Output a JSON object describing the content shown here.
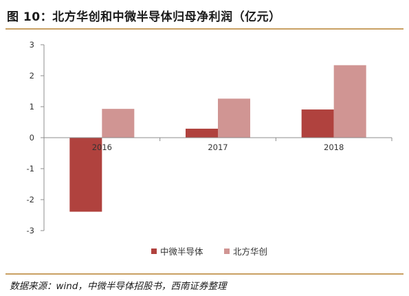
{
  "figure": {
    "title": "图 10：北方华创和中微半导体归母净利润（亿元）",
    "source": "数据来源：wind，中微半导体招股书，西南证券整理"
  },
  "colors": {
    "rule": "#c9a063",
    "axis": "#8c8c8c"
  },
  "chart_data": {
    "type": "bar",
    "title": "",
    "xlabel": "",
    "ylabel": "",
    "categories": [
      "2016",
      "2017",
      "2018"
    ],
    "series": [
      {
        "name": "中微半导体",
        "color": "#b0423e",
        "values": [
          -2.39,
          0.29,
          0.91
        ]
      },
      {
        "name": "北方华创",
        "color": "#d09593",
        "values": [
          0.93,
          1.26,
          2.34
        ]
      }
    ],
    "ylim": [
      -3,
      3
    ],
    "yticks": [
      "-3",
      "-2",
      "-1",
      "0",
      "1",
      "2",
      "3"
    ],
    "grid": false,
    "legend_position": "bottom-center"
  }
}
